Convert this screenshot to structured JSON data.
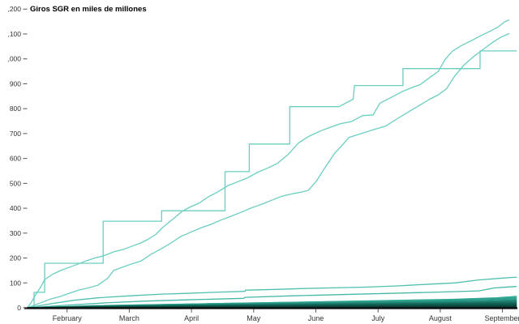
{
  "chart_data": {
    "type": "line",
    "title": "Giros SGR en miles de millones",
    "xlabel": "",
    "ylabel": "",
    "ylim": [
      0,
      1200
    ],
    "xlim_months_since_jan1": [
      0.36,
      8.28
    ],
    "grid": false,
    "legend": "none",
    "colors": {
      "main_line": "#6bcec1",
      "axis": "#0d0d0d",
      "tick_text": "#333333"
    },
    "y_axis": {
      "ticks": [
        {
          "value": 0,
          "label": "0"
        },
        {
          "value": 100,
          "label": "100"
        },
        {
          "value": 200,
          "label": "200"
        },
        {
          "value": 300,
          "label": "300"
        },
        {
          "value": 400,
          "label": "400"
        },
        {
          "value": 500,
          "label": "500"
        },
        {
          "value": 600,
          "label": "600"
        },
        {
          "value": 700,
          "label": "700"
        },
        {
          "value": 800,
          "label": "800"
        },
        {
          "value": 900,
          "label": "900"
        },
        {
          "value": 1000,
          "label": ",000"
        },
        {
          "value": 1100,
          "label": ",100"
        },
        {
          "value": 1200,
          "label": ",200"
        }
      ]
    },
    "x_axis": {
      "ticks": [
        {
          "month": 1,
          "label": "February"
        },
        {
          "month": 2,
          "label": "March"
        },
        {
          "month": 3,
          "label": "April"
        },
        {
          "month": 4,
          "label": "May"
        },
        {
          "month": 5,
          "label": "June"
        },
        {
          "month": 6,
          "label": "July"
        },
        {
          "month": 7,
          "label": "August"
        },
        {
          "month": 8,
          "label": "September"
        }
      ]
    },
    "series": [
      {
        "id": "cumulativa-alta-1",
        "color": "#6bcec1",
        "width": 1.3,
        "points": [
          [
            0.36,
            0
          ],
          [
            0.42,
            20
          ],
          [
            0.5,
            55
          ],
          [
            0.58,
            85
          ],
          [
            0.64,
            114
          ],
          [
            0.77,
            135
          ],
          [
            0.9,
            150
          ],
          [
            1.03,
            162
          ],
          [
            1.17,
            175
          ],
          [
            1.3,
            188
          ],
          [
            1.45,
            200
          ],
          [
            1.6,
            210
          ],
          [
            1.75,
            225
          ],
          [
            1.91,
            235
          ],
          [
            2.05,
            248
          ],
          [
            2.2,
            262
          ],
          [
            2.3,
            275
          ],
          [
            2.43,
            295
          ],
          [
            2.52,
            319
          ],
          [
            2.62,
            340
          ],
          [
            2.73,
            362
          ],
          [
            2.85,
            388
          ],
          [
            2.98,
            405
          ],
          [
            3.12,
            420
          ],
          [
            3.26,
            444
          ],
          [
            3.42,
            465
          ],
          [
            3.58,
            490
          ],
          [
            3.73,
            505
          ],
          [
            3.9,
            522
          ],
          [
            4.07,
            545
          ],
          [
            4.23,
            562
          ],
          [
            4.38,
            580
          ],
          [
            4.55,
            615
          ],
          [
            4.72,
            662
          ],
          [
            4.88,
            688
          ],
          [
            5.07,
            710
          ],
          [
            5.24,
            726
          ],
          [
            5.4,
            740
          ],
          [
            5.57,
            748
          ],
          [
            5.75,
            772
          ],
          [
            5.92,
            775
          ],
          [
            6.03,
            822
          ],
          [
            6.21,
            845
          ],
          [
            6.4,
            870
          ],
          [
            6.55,
            885
          ],
          [
            6.68,
            897
          ],
          [
            6.83,
            925
          ],
          [
            6.97,
            950
          ],
          [
            7.07,
            995
          ],
          [
            7.19,
            1030
          ],
          [
            7.33,
            1052
          ],
          [
            7.49,
            1072
          ],
          [
            7.64,
            1092
          ],
          [
            7.79,
            1110
          ],
          [
            7.93,
            1128
          ],
          [
            8.03,
            1148
          ],
          [
            8.11,
            1157
          ]
        ]
      },
      {
        "id": "cumulativa-alta-2",
        "color": "#6bcec1",
        "width": 1.3,
        "points": [
          [
            0.36,
            0
          ],
          [
            0.47,
            10
          ],
          [
            0.6,
            22
          ],
          [
            0.73,
            35
          ],
          [
            0.88,
            45
          ],
          [
            1.03,
            58
          ],
          [
            1.2,
            72
          ],
          [
            1.36,
            81
          ],
          [
            1.49,
            90
          ],
          [
            1.65,
            118
          ],
          [
            1.75,
            150
          ],
          [
            1.91,
            165
          ],
          [
            2.05,
            177
          ],
          [
            2.19,
            188
          ],
          [
            2.35,
            215
          ],
          [
            2.52,
            238
          ],
          [
            2.68,
            262
          ],
          [
            2.83,
            287
          ],
          [
            3.0,
            305
          ],
          [
            3.16,
            322
          ],
          [
            3.31,
            335
          ],
          [
            3.47,
            352
          ],
          [
            3.64,
            368
          ],
          [
            3.81,
            385
          ],
          [
            3.97,
            402
          ],
          [
            4.14,
            417
          ],
          [
            4.29,
            432
          ],
          [
            4.45,
            448
          ],
          [
            4.62,
            458
          ],
          [
            4.77,
            465
          ],
          [
            4.88,
            472
          ],
          [
            5.01,
            510
          ],
          [
            5.14,
            560
          ],
          [
            5.3,
            620
          ],
          [
            5.43,
            655
          ],
          [
            5.53,
            684
          ],
          [
            5.73,
            700
          ],
          [
            5.92,
            715
          ],
          [
            6.12,
            730
          ],
          [
            6.31,
            760
          ],
          [
            6.51,
            790
          ],
          [
            6.67,
            814
          ],
          [
            6.83,
            838
          ],
          [
            6.97,
            856
          ],
          [
            7.1,
            880
          ],
          [
            7.23,
            930
          ],
          [
            7.38,
            975
          ],
          [
            7.54,
            1010
          ],
          [
            7.7,
            1040
          ],
          [
            7.85,
            1068
          ],
          [
            7.98,
            1088
          ],
          [
            8.11,
            1102
          ]
        ]
      },
      {
        "id": "cumulativa-escalones",
        "color": "#6bcec1",
        "width": 1.3,
        "points": [
          [
            0.36,
            0
          ],
          [
            0.47,
            0
          ],
          [
            0.47,
            62
          ],
          [
            0.64,
            62
          ],
          [
            0.64,
            179
          ],
          [
            1.58,
            179
          ],
          [
            1.58,
            348
          ],
          [
            2.52,
            348
          ],
          [
            2.52,
            390
          ],
          [
            3.54,
            390
          ],
          [
            3.54,
            547
          ],
          [
            3.93,
            547
          ],
          [
            3.93,
            658
          ],
          [
            4.58,
            658
          ],
          [
            4.58,
            808
          ],
          [
            5.37,
            808
          ],
          [
            5.6,
            838
          ],
          [
            5.62,
            893
          ],
          [
            6.4,
            893
          ],
          [
            6.4,
            961
          ],
          [
            7.64,
            961
          ],
          [
            7.64,
            1032
          ],
          [
            8.23,
            1032
          ]
        ]
      },
      {
        "id": "media-1",
        "color": "#4fc0af",
        "width": 1.3,
        "points": [
          [
            0.36,
            0
          ],
          [
            0.71,
            15
          ],
          [
            1.1,
            30
          ],
          [
            1.49,
            40
          ],
          [
            2.01,
            48
          ],
          [
            2.53,
            55
          ],
          [
            2.92,
            58
          ],
          [
            3.45,
            63
          ],
          [
            3.86,
            66
          ],
          [
            3.87,
            71
          ],
          [
            4.36,
            74
          ],
          [
            4.75,
            77
          ],
          [
            5.27,
            80
          ],
          [
            5.79,
            83
          ],
          [
            6.31,
            88
          ],
          [
            6.83,
            95
          ],
          [
            7.23,
            100
          ],
          [
            7.62,
            112
          ],
          [
            7.94,
            118
          ],
          [
            8.23,
            123
          ]
        ]
      },
      {
        "id": "media-2",
        "color": "#45b9a7",
        "width": 1.3,
        "points": [
          [
            0.36,
            0
          ],
          [
            0.97,
            10
          ],
          [
            1.62,
            20
          ],
          [
            2.27,
            27
          ],
          [
            2.92,
            32
          ],
          [
            3.84,
            38
          ],
          [
            3.86,
            42
          ],
          [
            4.62,
            48
          ],
          [
            5.4,
            53
          ],
          [
            6.18,
            58
          ],
          [
            6.97,
            63
          ],
          [
            7.62,
            68
          ],
          [
            7.88,
            80
          ],
          [
            8.23,
            86
          ]
        ]
      },
      {
        "id": "banda-13",
        "color": "#35ad98",
        "width": 1.5,
        "points": [
          [
            0.5,
            0
          ],
          [
            2.0,
            10
          ],
          [
            3.5,
            17
          ],
          [
            5.5,
            26
          ],
          [
            7.2,
            34
          ],
          [
            7.9,
            40
          ],
          [
            8.23,
            46
          ]
        ]
      },
      {
        "id": "banda-12",
        "color": "#2fa591",
        "width": 1.5,
        "points": [
          [
            0.45,
            0
          ],
          [
            1.4,
            8
          ],
          [
            3.2,
            16
          ],
          [
            5.2,
            24
          ],
          [
            7.0,
            31
          ],
          [
            8.23,
            41
          ]
        ]
      },
      {
        "id": "banda-11",
        "color": "#2a9b88",
        "width": 1.5,
        "points": [
          [
            0.5,
            0
          ],
          [
            1.0,
            4
          ],
          [
            2.5,
            12
          ],
          [
            4.8,
            18
          ],
          [
            6.8,
            26
          ],
          [
            8.23,
            36
          ]
        ]
      },
      {
        "id": "banda-10",
        "color": "#25917f",
        "width": 1.5,
        "points": [
          [
            0.4,
            0
          ],
          [
            1.8,
            8
          ],
          [
            3.8,
            15
          ],
          [
            6.0,
            22
          ],
          [
            7.6,
            27
          ],
          [
            8.23,
            32
          ]
        ]
      },
      {
        "id": "banda-9",
        "color": "#218776",
        "width": 1.5,
        "points": [
          [
            0.5,
            0
          ],
          [
            2.2,
            8
          ],
          [
            4.2,
            14
          ],
          [
            6.4,
            20
          ],
          [
            8.23,
            28
          ]
        ]
      },
      {
        "id": "banda-8",
        "color": "#1d7d6d",
        "width": 1.6,
        "points": [
          [
            0.45,
            0
          ],
          [
            1.5,
            6
          ],
          [
            3.0,
            10
          ],
          [
            5.5,
            16
          ],
          [
            7.5,
            21
          ],
          [
            8.23,
            25
          ]
        ]
      },
      {
        "id": "banda-7",
        "color": "#1a7365",
        "width": 1.6,
        "points": [
          [
            0.5,
            0
          ],
          [
            2.0,
            6
          ],
          [
            4.5,
            12
          ],
          [
            7.0,
            17
          ],
          [
            8.23,
            22
          ]
        ]
      },
      {
        "id": "banda-6",
        "color": "#166a5c",
        "width": 1.6,
        "points": [
          [
            0.4,
            0
          ],
          [
            1.2,
            5
          ],
          [
            3.5,
            9
          ],
          [
            6.0,
            14
          ],
          [
            8.23,
            19
          ]
        ]
      },
      {
        "id": "banda-5",
        "color": "#136053",
        "width": 1.7,
        "points": [
          [
            0.5,
            0
          ],
          [
            1.5,
            4
          ],
          [
            4.0,
            8
          ],
          [
            6.5,
            12
          ],
          [
            8.23,
            16
          ]
        ]
      },
      {
        "id": "banda-4",
        "color": "#10594d",
        "width": 1.7,
        "points": [
          [
            0.45,
            0
          ],
          [
            2.0,
            3
          ],
          [
            5.0,
            8
          ],
          [
            8.23,
            13
          ]
        ]
      },
      {
        "id": "banda-3",
        "color": "#0d5348",
        "width": 1.8,
        "points": [
          [
            0.4,
            0
          ],
          [
            3.0,
            4
          ],
          [
            6.0,
            7
          ],
          [
            8.23,
            10
          ]
        ]
      },
      {
        "id": "banda-2",
        "color": "#0a4a40",
        "width": 1.8,
        "points": [
          [
            0.36,
            0
          ],
          [
            3.0,
            2
          ],
          [
            8.23,
            7
          ]
        ]
      },
      {
        "id": "banda-1",
        "color": "#063f37",
        "width": 1.8,
        "points": [
          [
            0.36,
            0
          ],
          [
            4.0,
            2
          ],
          [
            8.23,
            4
          ]
        ]
      }
    ]
  }
}
